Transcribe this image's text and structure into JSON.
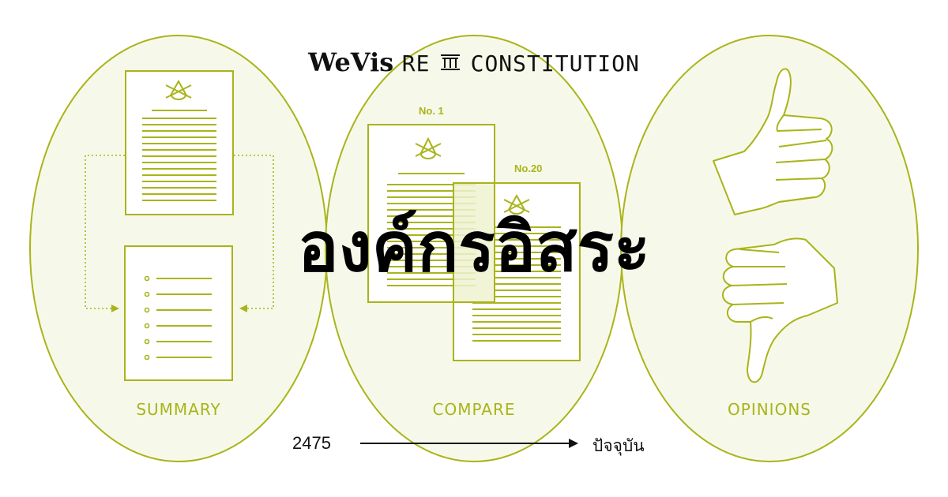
{
  "brand": {
    "logo": "WeVis",
    "re": "RE",
    "pillar_icon": "pillar-icon",
    "title": "CONSTITUTION"
  },
  "headline": "องค์กรอิสระ",
  "sections": [
    {
      "label": "SUMMARY",
      "icon": "document-with-seal-icon"
    },
    {
      "label": "COMPARE",
      "icon": "stacked-documents-icon"
    },
    {
      "label": "OPINIONS",
      "icon": "thumbs-up-down-icon"
    }
  ],
  "compare": {
    "doc_a": "No. 1",
    "doc_b": "No.20"
  },
  "timeline": {
    "start": "2475",
    "end": "ปัจจุบัน"
  },
  "colors": {
    "accent": "#a9b41a",
    "ellipse_fill": "#f4f8e6",
    "text": "#111111"
  }
}
